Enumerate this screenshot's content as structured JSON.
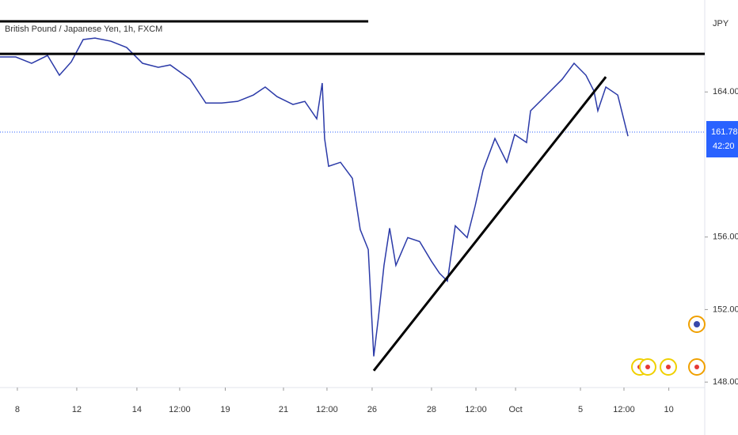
{
  "chart_data": {
    "type": "line",
    "title": "British Pound / Japanese Yen, 1h, FXCM",
    "currency": "JPY",
    "last_price": 161.785,
    "countdown": "42:20",
    "xlim": [
      -1.17,
      46.29
    ],
    "ylim": [
      147.7,
      169.07
    ],
    "yticks": [
      {
        "value": 148,
        "label": "148.000"
      },
      {
        "value": 152,
        "label": "152.000"
      },
      {
        "value": 156,
        "label": "156.000"
      },
      {
        "value": 164,
        "label": "164.000"
      }
    ],
    "xticks": [
      {
        "value": 0,
        "label": "8"
      },
      {
        "value": 4,
        "label": "12"
      },
      {
        "value": 8.05,
        "label": "14"
      },
      {
        "value": 10.93,
        "label": "12:00"
      },
      {
        "value": 14,
        "label": "19"
      },
      {
        "value": 17.92,
        "label": "21"
      },
      {
        "value": 20.85,
        "label": "12:00"
      },
      {
        "value": 23.89,
        "label": "26"
      },
      {
        "value": 27.89,
        "label": "28"
      },
      {
        "value": 30.88,
        "label": "12:00"
      },
      {
        "value": 33.55,
        "label": "Oct"
      },
      {
        "value": 37.92,
        "label": "5"
      },
      {
        "value": 40.85,
        "label": "12:00"
      },
      {
        "value": 43.87,
        "label": "10"
      }
    ],
    "series": [
      {
        "color": "#2b3aa8",
        "x": [
          -1.17,
          -0.11,
          0.96,
          2.03,
          2.83,
          3.63,
          4.43,
          5.23,
          6.29,
          7.36,
          8.43,
          9.49,
          10.29,
          11.63,
          12.69,
          13.76,
          14.83,
          15.89,
          16.69,
          17.49,
          18.56,
          19.36,
          20.16,
          20.53,
          20.69,
          20.96,
          21.76,
          22.56,
          23.09,
          23.63,
          24.0,
          24.32,
          24.69,
          25.07,
          25.49,
          26.29,
          27.09,
          27.89,
          28.43,
          28.96,
          29.49,
          30.29,
          30.83,
          31.36,
          32.16,
          32.96,
          33.49,
          34.29,
          34.56,
          35.63,
          36.69,
          37.49,
          38.29,
          38.83,
          39.09,
          39.63,
          40.43,
          41.12
        ],
        "values": [
          165.93,
          165.93,
          165.58,
          166.01,
          164.92,
          165.66,
          166.89,
          166.97,
          166.8,
          166.45,
          165.58,
          165.36,
          165.49,
          164.7,
          163.39,
          163.39,
          163.48,
          163.83,
          164.27,
          163.74,
          163.31,
          163.48,
          162.52,
          164.49,
          161.43,
          159.9,
          160.12,
          159.24,
          156.41,
          155.31,
          149.42,
          151.6,
          154.44,
          156.49,
          154.44,
          155.97,
          155.75,
          154.66,
          154.0,
          153.57,
          156.62,
          155.97,
          157.72,
          159.68,
          161.43,
          160.12,
          161.65,
          161.21,
          162.96,
          163.83,
          164.7,
          165.58,
          164.92,
          164.05,
          162.96,
          164.27,
          163.83,
          161.56
        ]
      }
    ],
    "drawings": [
      {
        "x": [
          -1.17,
          46.29
        ],
        "y": [
          166.1,
          166.1
        ]
      },
      {
        "x": [
          -1.17,
          23.63
        ],
        "y": [
          167.89,
          167.89
        ]
      },
      {
        "x": [
          24.0,
          39.63
        ],
        "y": [
          148.63,
          164.83
        ]
      }
    ]
  }
}
